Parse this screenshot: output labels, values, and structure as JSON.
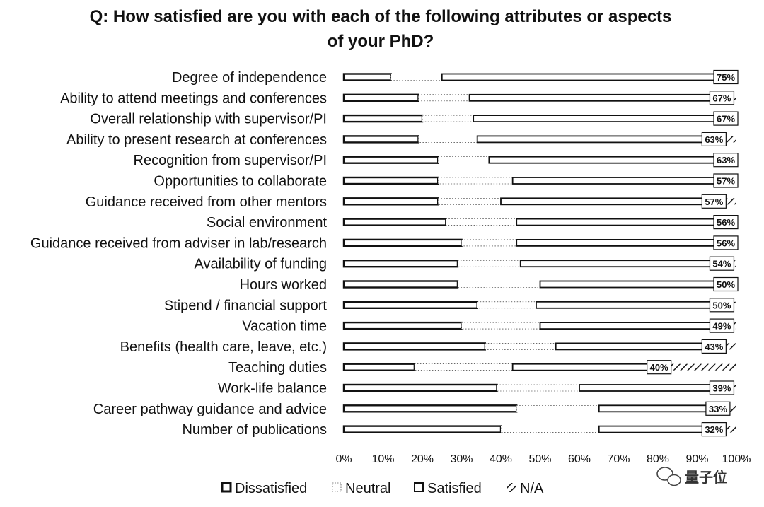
{
  "chart_data": {
    "type": "bar",
    "orientation": "horizontal",
    "stacked": true,
    "title": "Q: How satisfied are you with each of the following attributes or aspects of your PhD?",
    "title_lines": [
      "Q: How satisfied are you with each of the following attributes or aspects",
      "of your PhD?"
    ],
    "categories": [
      "Degree of independence",
      "Ability to attend meetings and conferences",
      "Overall relationship with supervisor/PI",
      "Ability to present research at conferences",
      "Recognition from supervisor/PI",
      "Opportunities to collaborate",
      "Guidance received from other mentors",
      "Social environment",
      "Guidance received from adviser in lab/research",
      "Availability of funding",
      "Hours worked",
      "Stipend / financial support",
      "Vacation time",
      "Benefits (health care, leave, etc.)",
      "Teaching duties",
      "Work-life balance",
      "Career pathway guidance and advice",
      "Number of publications"
    ],
    "series": [
      {
        "name": "Dissatisfied",
        "values": [
          12,
          19,
          20,
          19,
          24,
          24,
          24,
          26,
          30,
          29,
          29,
          34,
          30,
          36,
          18,
          39,
          44,
          40
        ],
        "color": "#ffffff",
        "pattern": "dissatisfied"
      },
      {
        "name": "Neutral",
        "values": [
          13,
          13,
          13,
          15,
          13,
          19,
          16,
          18,
          14,
          16,
          21,
          15,
          20,
          18,
          25,
          21,
          21,
          25
        ],
        "color": "#ffffff",
        "pattern": "neutral"
      },
      {
        "name": "Satisfied",
        "values": [
          75,
          67,
          67,
          63,
          63,
          57,
          57,
          56,
          56,
          54,
          50,
          50,
          49,
          43,
          40,
          39,
          33,
          32
        ],
        "color": "#ffffff",
        "pattern": "satisfied"
      },
      {
        "name": "N/A",
        "values": [
          0,
          1,
          0,
          3,
          0,
          0,
          3,
          0,
          0,
          1,
          0,
          1,
          1,
          3,
          17,
          1,
          2,
          3
        ],
        "color": "#ffffff",
        "pattern": "na"
      }
    ],
    "data_labels": [
      "75%",
      "67%",
      "67%",
      "63%",
      "63%",
      "57%",
      "57%",
      "56%",
      "56%",
      "54%",
      "50%",
      "50%",
      "49%",
      "43%",
      "40%",
      "39%",
      "33%",
      "32%"
    ],
    "x_ticks": [
      "0%",
      "10%",
      "20%",
      "30%",
      "40%",
      "50%",
      "60%",
      "70%",
      "80%",
      "90%",
      "100%"
    ],
    "xlim": [
      0,
      100
    ],
    "grid": false,
    "legend_position": "bottom",
    "legend": [
      "Dissatisfied",
      "Neutral",
      "Satisfied",
      "N/A"
    ]
  },
  "watermark": "量子位"
}
